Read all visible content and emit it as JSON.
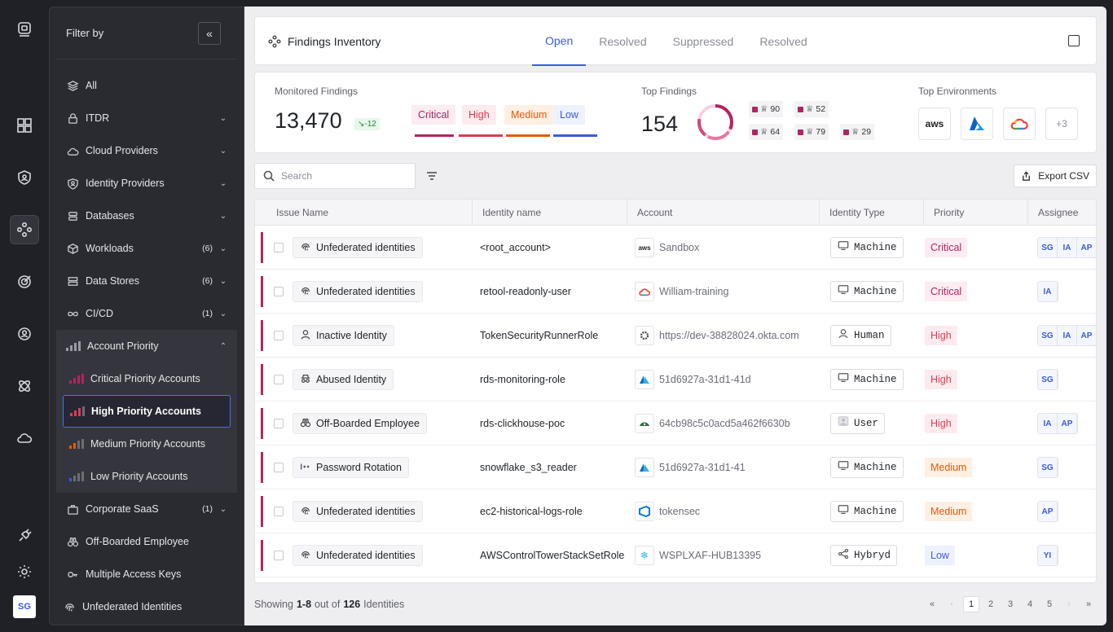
{
  "rail": {
    "items": [
      "logo-icon",
      "dashboard-icon",
      "shield-user-icon",
      "findings-icon",
      "target-icon",
      "identity-icon",
      "atom-icon",
      "cloud-icon",
      "plug-icon",
      "gear-icon"
    ],
    "avatar": "SG"
  },
  "sidebar": {
    "title": "Filter by",
    "items": [
      {
        "label": "All",
        "count": "",
        "icon": "layers-icon"
      },
      {
        "label": "ITDR",
        "count": "",
        "icon": "lock-icon"
      },
      {
        "label": "Cloud Providers",
        "count": "",
        "icon": "cloud-icon"
      },
      {
        "label": "Identity Providers",
        "count": "",
        "icon": "id-badge-icon"
      },
      {
        "label": "Databases",
        "count": "",
        "icon": "database-icon"
      },
      {
        "label": "Workloads",
        "count": "(6)",
        "icon": "cube-icon"
      },
      {
        "label": "Data Stores",
        "count": "(6)",
        "icon": "storage-icon"
      },
      {
        "label": "CI/CD",
        "count": "(1)",
        "icon": "infinity-icon"
      }
    ],
    "group": {
      "label": "Account Priority",
      "subs": [
        {
          "label": "Critical Priority Accounts",
          "color": "#b2245f"
        },
        {
          "label": "High Priority Accounts",
          "color": "#e03a55"
        },
        {
          "label": "Medium Priority Accounts",
          "color": "#e8590c"
        },
        {
          "label": "Low Priority Accounts",
          "color": "#3b5bdb"
        }
      ]
    },
    "after": [
      {
        "label": "Corporate SaaS",
        "count": "(1)",
        "icon": "briefcase-icon"
      },
      {
        "label": "Off-Boarded Employee",
        "count": "",
        "icon": "binoculars-icon"
      },
      {
        "label": "Multiple Access Keys",
        "count": "",
        "icon": "key-icon"
      },
      {
        "label": "Unfederated Identities",
        "count": "",
        "icon": "fingerprint-icon"
      }
    ]
  },
  "header": {
    "title": "Findings Inventory",
    "tabs": [
      "Open",
      "Resolved",
      "Suppressed",
      "Resolved"
    ]
  },
  "stats": {
    "monitored_label": "Monitored Findings",
    "monitored_value": "13,470",
    "delta": "↘-12",
    "priorities": [
      {
        "label": "Critical",
        "color": "#b2245f",
        "bg": "#fdecf2"
      },
      {
        "label": "High",
        "color": "#e03a55",
        "bg": "#fdebee"
      },
      {
        "label": "Medium",
        "color": "#e8590c",
        "bg": "#fff0e3"
      },
      {
        "label": "Low",
        "color": "#3b5bdb",
        "bg": "#edf2fe"
      }
    ],
    "top_label": "Top Findings",
    "top_value": "154",
    "top_chips": [
      "90",
      "52",
      "64",
      "79",
      "29"
    ],
    "env_label": "Top Environments",
    "env_more": "+3"
  },
  "toolbar": {
    "search_placeholder": "Search",
    "export_label": "Export CSV"
  },
  "table": {
    "columns": [
      "Issue Name",
      "Identity name",
      "Account",
      "Identity Type",
      "Priority",
      "Assignee"
    ],
    "rows": [
      {
        "issue": "Unfederated identities",
        "issue_icon": "fingerprint-icon",
        "identity": "<root_account>",
        "account": "Sandbox",
        "account_icon": "aws-logo",
        "type": "Machine",
        "type_icon": "monitor-icon",
        "priority": "Critical",
        "assignees": [
          "SG",
          "IA",
          "AP"
        ]
      },
      {
        "issue": "Unfederated identities",
        "issue_icon": "fingerprint-icon",
        "identity": "retool-readonly-user",
        "account": "William-training",
        "account_icon": "gcp-logo",
        "type": "Machine",
        "type_icon": "monitor-icon",
        "priority": "Critical",
        "assignees": [
          "IA"
        ]
      },
      {
        "issue": "Inactive Identity",
        "issue_icon": "user-icon",
        "identity": "TokenSecurityRunnerRole",
        "account": "https://dev-38828024.okta.com",
        "account_icon": "okta-logo",
        "type": "Human",
        "type_icon": "person-icon",
        "priority": "High",
        "assignees": [
          "SG",
          "IA",
          "AP"
        ]
      },
      {
        "issue": "Abused Identity",
        "issue_icon": "spy-icon",
        "identity": "rds-monitoring-role",
        "account": "51d6927a-31d1-41d",
        "account_icon": "azure-logo",
        "type": "Machine",
        "type_icon": "monitor-icon",
        "priority": "High",
        "assignees": [
          "SG"
        ]
      },
      {
        "issue": "Off-Boarded Employee",
        "issue_icon": "binoculars-icon",
        "identity": "rds-clickhouse-poc",
        "account": "64cb98c5c0acd5a462f6630b",
        "account_icon": "mongo-logo",
        "type": "User",
        "type_icon": "avatar-icon",
        "priority": "High",
        "assignees": [
          "IA",
          "AP"
        ]
      },
      {
        "issue": "Password Rotation",
        "issue_icon": "password-icon",
        "identity": "snowflake_s3_reader",
        "account": "51d6927a-31d1-41",
        "account_icon": "azure-logo",
        "type": "Machine",
        "type_icon": "monitor-icon",
        "priority": "Medium",
        "assignees": [
          "SG"
        ]
      },
      {
        "issue": "Unfederated identities",
        "issue_icon": "fingerprint-icon",
        "identity": "ec2-historical-logs-role",
        "account": "tokensec",
        "account_icon": "azure-devops-logo",
        "type": "Machine",
        "type_icon": "monitor-icon",
        "priority": "Medium",
        "assignees": [
          "AP"
        ]
      },
      {
        "issue": "Unfederated identities",
        "issue_icon": "fingerprint-icon",
        "identity": "AWSControlTowerStackSetRole",
        "account": "WSPLXAF-HUB13395",
        "account_icon": "snowflake-logo",
        "type": "Hybryd",
        "type_icon": "share-icon",
        "priority": "Low",
        "assignees": [
          "YI"
        ]
      }
    ]
  },
  "footer": {
    "showing": "Showing",
    "range": "1-8",
    "out_of": "out of",
    "total": "126",
    "unit": "Identities",
    "pages": [
      "1",
      "2",
      "3",
      "4",
      "5"
    ]
  }
}
